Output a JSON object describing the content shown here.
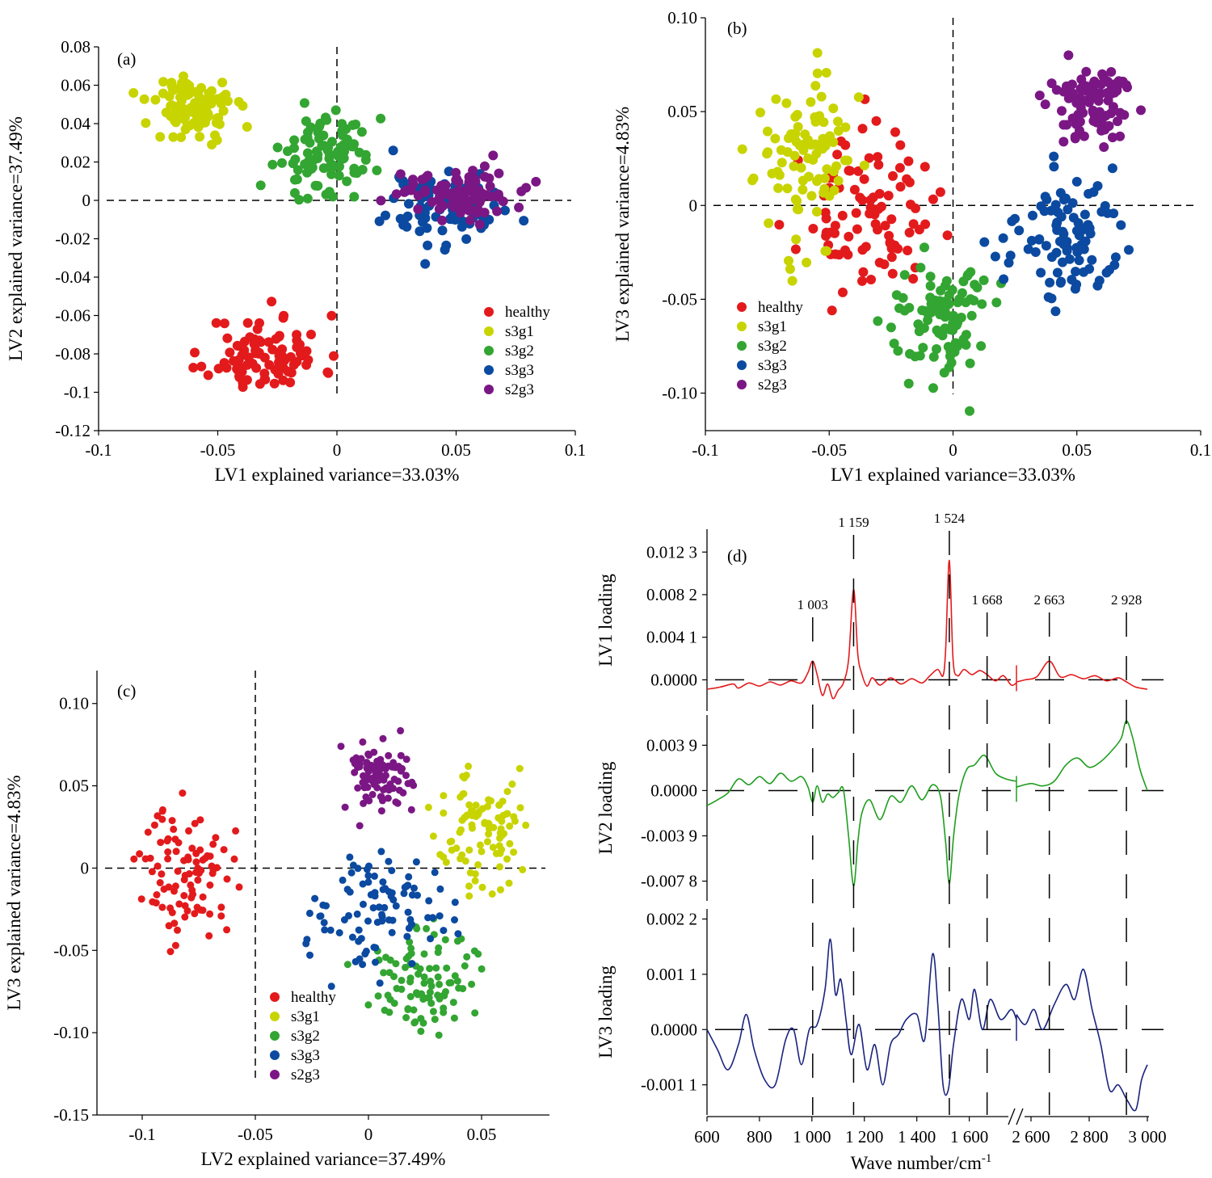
{
  "colors": {
    "healthy": "#e31a1c",
    "s3g1": "#c8d400",
    "s3g2": "#33a532",
    "s3g3": "#0b4aa0",
    "s2g3": "#7b1784",
    "lv1_line": "#e31a1c",
    "lv2_line": "#1f9e1f",
    "lv3_line": "#1a237e"
  },
  "chart_data": [
    {
      "type": "scatter",
      "panel_label": "(a)",
      "xlabel": "LV1 explained variance=33.03%",
      "ylabel": "LV2 explained variance=37.49%",
      "xlim": [
        -0.1,
        0.1
      ],
      "ylim": [
        -0.12,
        0.08
      ],
      "xticks": [
        "-0.1",
        "-0.05",
        "0",
        "0.05",
        "0.1"
      ],
      "yticks": [
        "0.08",
        "0.06",
        "0.04",
        "0.02",
        "0",
        "-0.02",
        "-0.04",
        "-0.06",
        "-0.08",
        "-0.1",
        "-0.12"
      ],
      "legend": [
        "healthy",
        "s3g1",
        "s3g2",
        "s3g3",
        "s2g3"
      ],
      "legend_position": "bottom-right",
      "reference_lines": {
        "x": 0,
        "y": 0
      },
      "series": [
        {
          "name": "healthy",
          "center": [
            -0.03,
            -0.08
          ],
          "spread": [
            0.012,
            0.01
          ]
        },
        {
          "name": "s3g1",
          "center": [
            -0.06,
            0.048
          ],
          "spread": [
            0.009,
            0.009
          ]
        },
        {
          "name": "s3g2",
          "center": [
            -0.005,
            0.025
          ],
          "spread": [
            0.01,
            0.01
          ]
        },
        {
          "name": "s3g3",
          "center": [
            0.045,
            -0.003
          ],
          "spread": [
            0.012,
            0.01
          ]
        },
        {
          "name": "s2g3",
          "center": [
            0.05,
            0.005
          ],
          "spread": [
            0.012,
            0.007
          ]
        }
      ]
    },
    {
      "type": "scatter",
      "panel_label": "(b)",
      "xlabel": "LV1 explained variance=33.03%",
      "ylabel": "LV3 explained variance=4.83%",
      "xlim": [
        -0.1,
        0.1
      ],
      "ylim": [
        -0.12,
        0.1
      ],
      "xticks": [
        "-0.1",
        "-0.05",
        "0",
        "0.05",
        "0.1"
      ],
      "yticks": [
        "0.10",
        "0.05",
        "0",
        "-0.05",
        "-0.10"
      ],
      "legend": [
        "healthy",
        "s3g1",
        "s3g2",
        "s3g3",
        "s2g3"
      ],
      "legend_position": "bottom-left",
      "reference_lines": {
        "x": 0,
        "y": 0
      },
      "series": [
        {
          "name": "healthy",
          "center": [
            -0.035,
            -0.005
          ],
          "spread": [
            0.013,
            0.02
          ]
        },
        {
          "name": "s3g1",
          "center": [
            -0.06,
            0.025
          ],
          "spread": [
            0.01,
            0.022
          ]
        },
        {
          "name": "s3g2",
          "center": [
            -0.005,
            -0.06
          ],
          "spread": [
            0.01,
            0.018
          ]
        },
        {
          "name": "s3g3",
          "center": [
            0.045,
            -0.018
          ],
          "spread": [
            0.011,
            0.016
          ]
        },
        {
          "name": "s2g3",
          "center": [
            0.055,
            0.055
          ],
          "spread": [
            0.009,
            0.012
          ]
        }
      ]
    },
    {
      "type": "scatter",
      "panel_label": "(c)",
      "xlabel": "LV2 explained variance=37.49%",
      "ylabel": "LV3 explained variance=4.83%",
      "xlim": [
        -0.12,
        0.08
      ],
      "ylim": [
        -0.15,
        0.12
      ],
      "xticks": [
        "-0.1",
        "-0.05",
        "0",
        "0.05"
      ],
      "yticks": [
        "0.10",
        "0.05",
        "0",
        "-0.05",
        "-0.10",
        "-0.15"
      ],
      "legend": [
        "healthy",
        "s3g1",
        "s3g2",
        "s3g3",
        "s2g3"
      ],
      "legend_position": "bottom-center",
      "reference_lines": {
        "x": -0.05,
        "y": 0
      },
      "series": [
        {
          "name": "healthy",
          "center": [
            -0.08,
            -0.003
          ],
          "spread": [
            0.01,
            0.02
          ]
        },
        {
          "name": "s3g1",
          "center": [
            0.048,
            0.025
          ],
          "spread": [
            0.009,
            0.02
          ]
        },
        {
          "name": "s3g2",
          "center": [
            0.025,
            -0.065
          ],
          "spread": [
            0.011,
            0.016
          ]
        },
        {
          "name": "s3g3",
          "center": [
            0.005,
            -0.025
          ],
          "spread": [
            0.015,
            0.016
          ]
        },
        {
          "name": "s2g3",
          "center": [
            0.005,
            0.058
          ],
          "spread": [
            0.008,
            0.011
          ]
        }
      ]
    },
    {
      "type": "line",
      "panel_label": "(d)",
      "xlabel": "Wave number/cm",
      "xlabel_superscript": "-1",
      "x_segments": [
        [
          600,
          1780
        ],
        [
          2550,
          3000
        ]
      ],
      "xticks": [
        "600",
        "800",
        "1 000",
        "1 200",
        "1 400",
        "1 600",
        "2 600",
        "2 800",
        "3 000"
      ],
      "xtick_values": [
        600,
        800,
        1000,
        1200,
        1400,
        1600,
        2600,
        2800,
        3000
      ],
      "peaks": [
        {
          "label": "1 003",
          "x": 1003
        },
        {
          "label": "1 159",
          "x": 1159
        },
        {
          "label": "1 524",
          "x": 1524
        },
        {
          "label": "1 668",
          "x": 1668
        },
        {
          "label": "2 663",
          "x": 2663
        },
        {
          "label": "2 928",
          "x": 2928
        }
      ],
      "subplots": [
        {
          "name": "LV1 loading",
          "ylabel": "LV1 loading",
          "ylim": [
            -0.003,
            0.0145
          ],
          "yticks": [
            "0.012 3",
            "0.008 2",
            "0.004 1",
            "0.0000"
          ],
          "ytick_values": [
            0.0123,
            0.0082,
            0.0041,
            0.0
          ],
          "points": [
            [
              600,
              -0.0009
            ],
            [
              650,
              -0.0007
            ],
            [
              700,
              -0.0004
            ],
            [
              720,
              -0.0008
            ],
            [
              760,
              -0.0003
            ],
            [
              800,
              -0.0006
            ],
            [
              840,
              -0.0002
            ],
            [
              880,
              -0.0005
            ],
            [
              920,
              -0.0001
            ],
            [
              960,
              -0.0003
            ],
            [
              985,
              0.0007
            ],
            [
              1003,
              0.0018
            ],
            [
              1020,
              0.0005
            ],
            [
              1040,
              -0.0015
            ],
            [
              1060,
              -0.0004
            ],
            [
              1080,
              -0.0018
            ],
            [
              1100,
              -0.001
            ],
            [
              1120,
              -0.0003
            ],
            [
              1140,
              0.002
            ],
            [
              1159,
              0.0087
            ],
            [
              1175,
              0.0025
            ],
            [
              1190,
              0.0006
            ],
            [
              1210,
              -0.0006
            ],
            [
              1230,
              0.0002
            ],
            [
              1260,
              -0.0005
            ],
            [
              1300,
              0.0002
            ],
            [
              1340,
              -0.0004
            ],
            [
              1380,
              0.0001
            ],
            [
              1420,
              -0.0003
            ],
            [
              1450,
              0.0004
            ],
            [
              1480,
              0.001
            ],
            [
              1500,
              0.0004
            ],
            [
              1510,
              0.003
            ],
            [
              1524,
              0.0115
            ],
            [
              1538,
              0.002
            ],
            [
              1555,
              0.0004
            ],
            [
              1580,
              0.001
            ],
            [
              1610,
              0.0005
            ],
            [
              1640,
              0.0009
            ],
            [
              1668,
              0.0005
            ],
            [
              1700,
              -0.0001
            ],
            [
              1730,
              0.0004
            ],
            [
              1760,
              -0.0005
            ],
            [
              1780,
              -0.0003
            ],
            [
              2550,
              -0.0002
            ],
            [
              2580,
              0.0
            ],
            [
              2620,
              0.0003
            ],
            [
              2663,
              0.0018
            ],
            [
              2700,
              0.0003
            ],
            [
              2740,
              0.0005
            ],
            [
              2780,
              0.0001
            ],
            [
              2820,
              0.0004
            ],
            [
              2860,
              -0.0001
            ],
            [
              2900,
              0.0002
            ],
            [
              2928,
              -0.0002
            ],
            [
              2960,
              -0.0007
            ],
            [
              3000,
              -0.0009
            ]
          ]
        },
        {
          "name": "LV2 loading",
          "ylabel": "LV2 loading",
          "ylim": [
            -0.0095,
            0.0065
          ],
          "yticks": [
            "0.003 9",
            "0.0000",
            "-0.003 9",
            "-0.007 8"
          ],
          "ytick_values": [
            0.0039,
            0.0,
            -0.0039,
            -0.0078
          ],
          "points": [
            [
              600,
              -0.0013
            ],
            [
              640,
              -0.0008
            ],
            [
              680,
              -0.0002
            ],
            [
              720,
              0.001
            ],
            [
              760,
              0.0005
            ],
            [
              800,
              0.0012
            ],
            [
              840,
              0.0006
            ],
            [
              880,
              0.0015
            ],
            [
              920,
              0.0008
            ],
            [
              960,
              0.0012
            ],
            [
              985,
              0.0003
            ],
            [
              1003,
              -0.001
            ],
            [
              1020,
              0.0004
            ],
            [
              1040,
              -0.001
            ],
            [
              1060,
              -0.0003
            ],
            [
              1080,
              -0.0006
            ],
            [
              1100,
              -0.0002
            ],
            [
              1120,
              0.0001
            ],
            [
              1140,
              -0.004
            ],
            [
              1159,
              -0.0082
            ],
            [
              1175,
              -0.0045
            ],
            [
              1190,
              -0.002
            ],
            [
              1220,
              -0.0008
            ],
            [
              1260,
              -0.0025
            ],
            [
              1300,
              -0.0005
            ],
            [
              1340,
              -0.001
            ],
            [
              1380,
              0.0004
            ],
            [
              1420,
              -0.0008
            ],
            [
              1460,
              0.0005
            ],
            [
              1490,
              -0.0005
            ],
            [
              1510,
              -0.0045
            ],
            [
              1524,
              -0.008
            ],
            [
              1540,
              -0.004
            ],
            [
              1560,
              -0.0005
            ],
            [
              1590,
              0.0018
            ],
            [
              1620,
              0.0022
            ],
            [
              1650,
              0.003
            ],
            [
              1668,
              0.0028
            ],
            [
              1700,
              0.0015
            ],
            [
              1740,
              0.001
            ],
            [
              1780,
              0.0008
            ],
            [
              2550,
              0.0003
            ],
            [
              2600,
              0.0006
            ],
            [
              2640,
              0.0004
            ],
            [
              2680,
              0.0008
            ],
            [
              2720,
              0.0022
            ],
            [
              2760,
              0.0028
            ],
            [
              2800,
              0.002
            ],
            [
              2840,
              0.0025
            ],
            [
              2880,
              0.0035
            ],
            [
              2910,
              0.0045
            ],
            [
              2928,
              0.006
            ],
            [
              2950,
              0.0045
            ],
            [
              2975,
              0.0018
            ],
            [
              3000,
              0.0
            ]
          ]
        },
        {
          "name": "LV3 loading",
          "ylabel": "LV3 loading",
          "ylim": [
            -0.0017,
            0.0024
          ],
          "yticks": [
            "0.002 2",
            "0.001 1",
            "0.0000",
            "-0.001 1"
          ],
          "ytick_values": [
            0.0022,
            0.0011,
            0.0,
            -0.0011
          ],
          "points": [
            [
              600,
              0.0
            ],
            [
              640,
              -0.0004
            ],
            [
              680,
              -0.0008
            ],
            [
              720,
              -0.0003
            ],
            [
              750,
              0.0003
            ],
            [
              780,
              -0.0004
            ],
            [
              820,
              -0.001
            ],
            [
              860,
              -0.0011
            ],
            [
              900,
              -0.0002
            ],
            [
              930,
              0.0
            ],
            [
              960,
              -0.0007
            ],
            [
              990,
              0.0
            ],
            [
              1020,
              0.0001
            ],
            [
              1050,
              0.0008
            ],
            [
              1070,
              0.0018
            ],
            [
              1090,
              0.0007
            ],
            [
              1110,
              0.001
            ],
            [
              1130,
              0.0002
            ],
            [
              1150,
              -0.0005
            ],
            [
              1180,
              0.0001
            ],
            [
              1210,
              -0.0008
            ],
            [
              1240,
              -0.0003
            ],
            [
              1270,
              -0.0011
            ],
            [
              1300,
              -0.0003
            ],
            [
              1330,
              -0.0001
            ],
            [
              1360,
              0.0002
            ],
            [
              1400,
              0.0003
            ],
            [
              1430,
              -0.0002
            ],
            [
              1460,
              0.0015
            ],
            [
              1480,
              0.0005
            ],
            [
              1500,
              -0.0011
            ],
            [
              1520,
              -0.0012
            ],
            [
              1540,
              -0.0003
            ],
            [
              1570,
              0.0006
            ],
            [
              1600,
              0.0002
            ],
            [
              1620,
              0.0008
            ],
            [
              1650,
              0.0
            ],
            [
              1680,
              0.0006
            ],
            [
              1720,
              0.0002
            ],
            [
              1760,
              0.0004
            ],
            [
              1780,
              0.0002
            ],
            [
              2550,
              0.0003
            ],
            [
              2580,
              0.0001
            ],
            [
              2610,
              0.0004
            ],
            [
              2640,
              0.0
            ],
            [
              2680,
              0.0005
            ],
            [
              2720,
              0.0009
            ],
            [
              2750,
              0.0006
            ],
            [
              2780,
              0.0012
            ],
            [
              2810,
              0.0004
            ],
            [
              2840,
              -0.0003
            ],
            [
              2870,
              -0.0012
            ],
            [
              2900,
              -0.0011
            ],
            [
              2930,
              -0.0014
            ],
            [
              2960,
              -0.0016
            ],
            [
              2980,
              -0.001
            ],
            [
              3000,
              -0.0007
            ]
          ]
        }
      ]
    }
  ]
}
